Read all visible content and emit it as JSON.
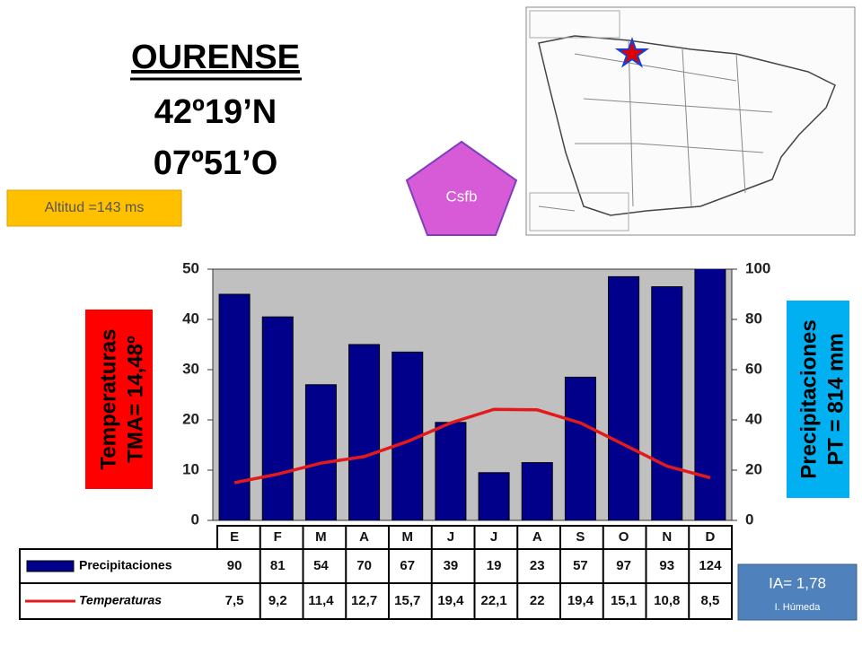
{
  "header": {
    "title": "OURENSE",
    "lat": "42º19’N",
    "lon": "07º51’O"
  },
  "altitude": "Altitud =143 ms",
  "climate": "Csfb",
  "aridity": {
    "index": "IA= 1,78",
    "label": "I. Húmeda"
  },
  "chart_data": {
    "type": "climograph",
    "categories": [
      "E",
      "F",
      "M",
      "A",
      "M",
      "J",
      "J",
      "A",
      "S",
      "O",
      "N",
      "D"
    ],
    "series": [
      {
        "name": "Precipitaciones",
        "color": "#00008b",
        "axis": "y2",
        "values": [
          90,
          81,
          54,
          70,
          67,
          39,
          19,
          23,
          57,
          97,
          93,
          124
        ]
      },
      {
        "name": "Temperaturas",
        "color": "#e31a1c",
        "values": [
          7.5,
          9.2,
          11.4,
          12.7,
          15.7,
          19.4,
          22.1,
          22,
          19.4,
          15.1,
          10.8,
          8.5
        ],
        "value_labels": [
          "7,5",
          "9,2",
          "11,4",
          "12,7",
          "15,7",
          "19,4",
          "22,1",
          "22",
          "19,4",
          "15,1",
          "10,8",
          "8,5"
        ]
      }
    ],
    "ylim": [
      0,
      50
    ],
    "yticks": [
      0,
      10,
      20,
      30,
      40,
      50
    ],
    "y2lim": [
      0,
      100
    ],
    "y2ticks": [
      0,
      20,
      40,
      60,
      80,
      100
    ],
    "ylabel": "Temperaturas",
    "ylabel_sub": "TMA= 14,48º",
    "y2label": "Precipitaciones",
    "y2label_sub": "PT = 814 mm"
  }
}
